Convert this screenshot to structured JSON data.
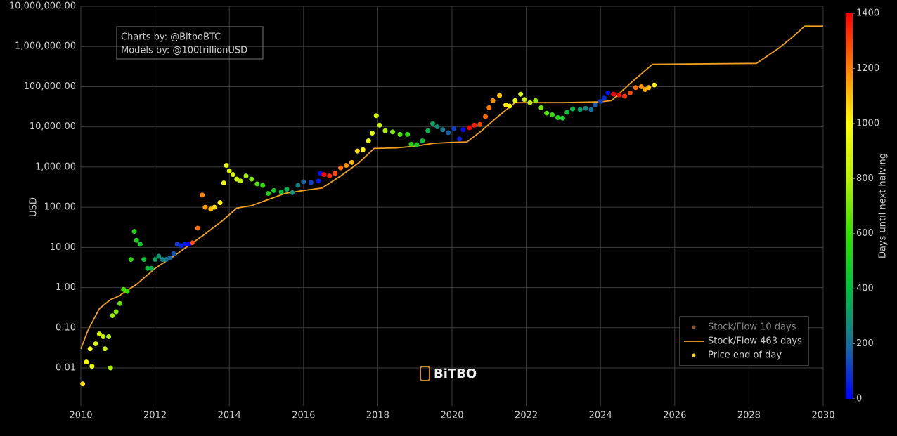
{
  "chart_data": {
    "type": "scatter",
    "ylabel": "USD",
    "log_y": true,
    "grid": true,
    "legend_position": "lower right",
    "annotation": [
      "Charts by: @BitboBTC",
      "Models by: @100trillionUSD"
    ],
    "watermark": "BiTBO",
    "xlim": [
      2010,
      2030
    ],
    "xticks": [
      2010,
      2012,
      2014,
      2016,
      2018,
      2020,
      2022,
      2024,
      2026,
      2028,
      2030
    ],
    "ylim": [
      0.00114,
      10000000
    ],
    "yticks": [
      {
        "value": 0.01,
        "label": "0.01"
      },
      {
        "value": 0.1,
        "label": "0.10"
      },
      {
        "value": 1,
        "label": "1.00"
      },
      {
        "value": 10,
        "label": "10.00"
      },
      {
        "value": 100,
        "label": "100.00"
      },
      {
        "value": 1000,
        "label": "1,000.00"
      },
      {
        "value": 10000,
        "label": "10,000.00"
      },
      {
        "value": 100000,
        "label": "100,000.00"
      },
      {
        "value": 1000000,
        "label": "1,000,000.00"
      },
      {
        "value": 10000000,
        "label": "10,000,000.00"
      }
    ],
    "colorbar": {
      "title": "Days until next halving",
      "lim": [
        0,
        1400
      ],
      "ticks": [
        0,
        200,
        400,
        600,
        800,
        1000,
        1200,
        1400
      ],
      "colorscale": [
        "#0000ff",
        "#1a6f9a",
        "#00c040",
        "#33e000",
        "#b8f000",
        "#ffff00",
        "#ff8000",
        "#ff0000"
      ]
    },
    "series": [
      {
        "name": "Stock/Flow 10 days",
        "color": "#8b5a2b",
        "visible": false
      },
      {
        "name": "Stock/Flow 463 days",
        "color": "#f0a020",
        "type": "line",
        "x": [
          2010.0,
          2010.2,
          2010.5,
          2010.8,
          2011.0,
          2011.5,
          2012.0,
          2012.5,
          2012.9,
          2013.3,
          2013.8,
          2014.2,
          2014.6,
          2015.0,
          2015.5,
          2016.0,
          2016.5,
          2017.0,
          2017.5,
          2017.9,
          2018.5,
          2019.0,
          2019.5,
          2020.0,
          2020.4,
          2020.8,
          2021.2,
          2021.7,
          2022.0,
          2023.0,
          2024.0,
          2024.3,
          2024.8,
          2025.4,
          2028.2,
          2028.8,
          2029.2,
          2029.5,
          2030.0
        ],
        "values": [
          0.03,
          0.09,
          0.3,
          0.5,
          0.6,
          1.2,
          3,
          6,
          11,
          20,
          45,
          95,
          110,
          150,
          220,
          260,
          300,
          600,
          1300,
          2900,
          3000,
          3300,
          3900,
          4100,
          4200,
          8000,
          17000,
          40000,
          40000,
          40000,
          42000,
          45000,
          120000,
          360000,
          380000,
          900000,
          1800000,
          3200000,
          3200000
        ]
      },
      {
        "name": "Price end of day",
        "color": "#ffd700",
        "type": "scatter",
        "x": [
          2010.05,
          2010.15,
          2010.25,
          2010.3,
          2010.4,
          2010.5,
          2010.6,
          2010.65,
          2010.75,
          2010.8,
          2010.85,
          2010.95,
          2011.05,
          2011.15,
          2011.25,
          2011.35,
          2011.44,
          2011.5,
          2011.6,
          2011.7,
          2011.8,
          2011.9,
          2012.0,
          2012.1,
          2012.2,
          2012.3,
          2012.4,
          2012.5,
          2012.6,
          2012.7,
          2012.8,
          2012.9,
          2013.0,
          2013.15,
          2013.27,
          2013.35,
          2013.5,
          2013.6,
          2013.75,
          2013.85,
          2013.92,
          2014.0,
          2014.1,
          2014.2,
          2014.3,
          2014.45,
          2014.6,
          2014.75,
          2014.9,
          2015.05,
          2015.2,
          2015.4,
          2015.55,
          2015.7,
          2015.85,
          2016.0,
          2016.2,
          2016.4,
          2016.45,
          2016.55,
          2016.7,
          2016.85,
          2017.0,
          2017.15,
          2017.3,
          2017.45,
          2017.6,
          2017.75,
          2017.85,
          2017.96,
          2018.05,
          2018.2,
          2018.4,
          2018.6,
          2018.8,
          2018.9,
          2019.05,
          2019.2,
          2019.35,
          2019.48,
          2019.6,
          2019.75,
          2019.9,
          2020.05,
          2020.2,
          2020.3,
          2020.47,
          2020.6,
          2020.75,
          2020.9,
          2021.0,
          2021.1,
          2021.28,
          2021.45,
          2021.55,
          2021.7,
          2021.85,
          2021.95,
          2022.1,
          2022.25,
          2022.4,
          2022.55,
          2022.7,
          2022.85,
          2022.98,
          2023.1,
          2023.25,
          2023.45,
          2023.6,
          2023.75,
          2023.85,
          2024.0,
          2024.1,
          2024.2,
          2024.35,
          2024.5,
          2024.65,
          2024.8,
          2024.95,
          2025.1,
          2025.2,
          2025.3,
          2025.45
        ],
        "values": [
          0.004,
          0.014,
          0.03,
          0.011,
          0.04,
          0.07,
          0.06,
          0.03,
          0.06,
          0.01,
          0.2,
          0.25,
          0.4,
          0.9,
          0.8,
          5,
          25,
          15,
          12,
          5,
          3,
          3,
          5,
          6,
          5,
          5,
          5.5,
          7,
          12,
          11,
          12,
          12,
          13,
          30,
          200,
          100,
          90,
          100,
          130,
          400,
          1100,
          800,
          650,
          500,
          450,
          600,
          500,
          380,
          350,
          220,
          260,
          240,
          280,
          230,
          350,
          430,
          410,
          450,
          700,
          650,
          600,
          700,
          950,
          1100,
          1300,
          2500,
          2700,
          4500,
          7000,
          19000,
          11000,
          8000,
          7500,
          6500,
          6500,
          3700,
          3600,
          4500,
          8000,
          12000,
          10000,
          8500,
          7200,
          9000,
          5000,
          8500,
          9500,
          11000,
          11500,
          18000,
          30000,
          45000,
          60000,
          35000,
          33000,
          45000,
          65000,
          48000,
          40000,
          45000,
          30000,
          22000,
          20000,
          17000,
          16500,
          23000,
          28000,
          27000,
          29000,
          27000,
          35000,
          43000,
          52000,
          70000,
          65000,
          62000,
          58000,
          70000,
          95000,
          100000,
          85000,
          95000,
          110000
        ],
        "color_values": [
          1044,
          1007,
          971,
          953,
          916,
          880,
          843,
          825,
          788,
          770,
          752,
          715,
          679,
          642,
          606,
          569,
          537,
          515,
          478,
          442,
          405,
          369,
          332,
          296,
          259,
          223,
          186,
          150,
          113,
          77,
          40,
          4,
          1285,
          1230,
          1186,
          1157,
          1102,
          1066,
          1011,
          975,
          949,
          920,
          883,
          847,
          810,
          756,
          701,
          646,
          591,
          537,
          482,
          409,
          354,
          299,
          245,
          190,
          117,
          44,
          26,
          1391,
          1336,
          1281,
          1226,
          1172,
          1117,
          1062,
          1007,
          953,
          916,
          876,
          843,
          788,
          715,
          642,
          569,
          533,
          478,
          423,
          369,
          321,
          277,
          223,
          168,
          113,
          58,
          22,
          1398,
          1351,
          1296,
          1241,
          1205,
          1168,
          1102,
          1040,
          1004,
          949,
          894,
          858,
          803,
          748,
          694,
          639,
          584,
          529,
          482,
          438,
          383,
          310,
          256,
          201,
          164,
          110,
          73,
          37,
          1442,
          1387,
          1332,
          1278,
          1223,
          1168,
          1132,
          1095,
          1040
        ]
      }
    ]
  }
}
